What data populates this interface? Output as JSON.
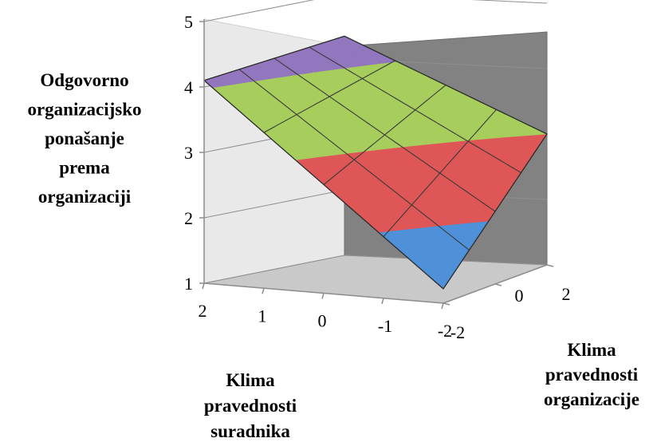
{
  "chart_data": {
    "type": "surface",
    "title": "",
    "ylabel": "Odgovorno organizacijsko ponašanje prema organizaciji",
    "xlabel": "Klima pravednosti suradnika",
    "zlabel": "Klima pravednosti organizacije",
    "ylim": [
      1,
      5
    ],
    "yticks": [
      "1",
      "2",
      "3",
      "4",
      "5"
    ],
    "xticks": [
      "2",
      "1",
      "0",
      "-1",
      "-2"
    ],
    "zticks": [
      "-2",
      "0",
      "2"
    ],
    "xlim": [
      -2,
      2
    ],
    "zlim": [
      -2,
      2
    ],
    "grid": "0.5",
    "surface": {
      "x": [
        2,
        1.5,
        1,
        0.5,
        0,
        -0.5,
        -1,
        -1.5,
        -2
      ],
      "z": [
        2,
        0,
        -2
      ],
      "corners": {
        "x2_z2": 4.35,
        "x2_zm2": 4.1,
        "xm2_z2": 3.0,
        "xm2_zm2": 1.22
      }
    },
    "color_bands": [
      {
        "range": [
          1,
          2
        ],
        "color": "#4f91d9"
      },
      {
        "range": [
          2,
          3
        ],
        "color": "#df5656"
      },
      {
        "range": [
          3,
          4
        ],
        "color": "#a7cd5d"
      },
      {
        "range": [
          4,
          5
        ],
        "color": "#9276be"
      }
    ]
  }
}
